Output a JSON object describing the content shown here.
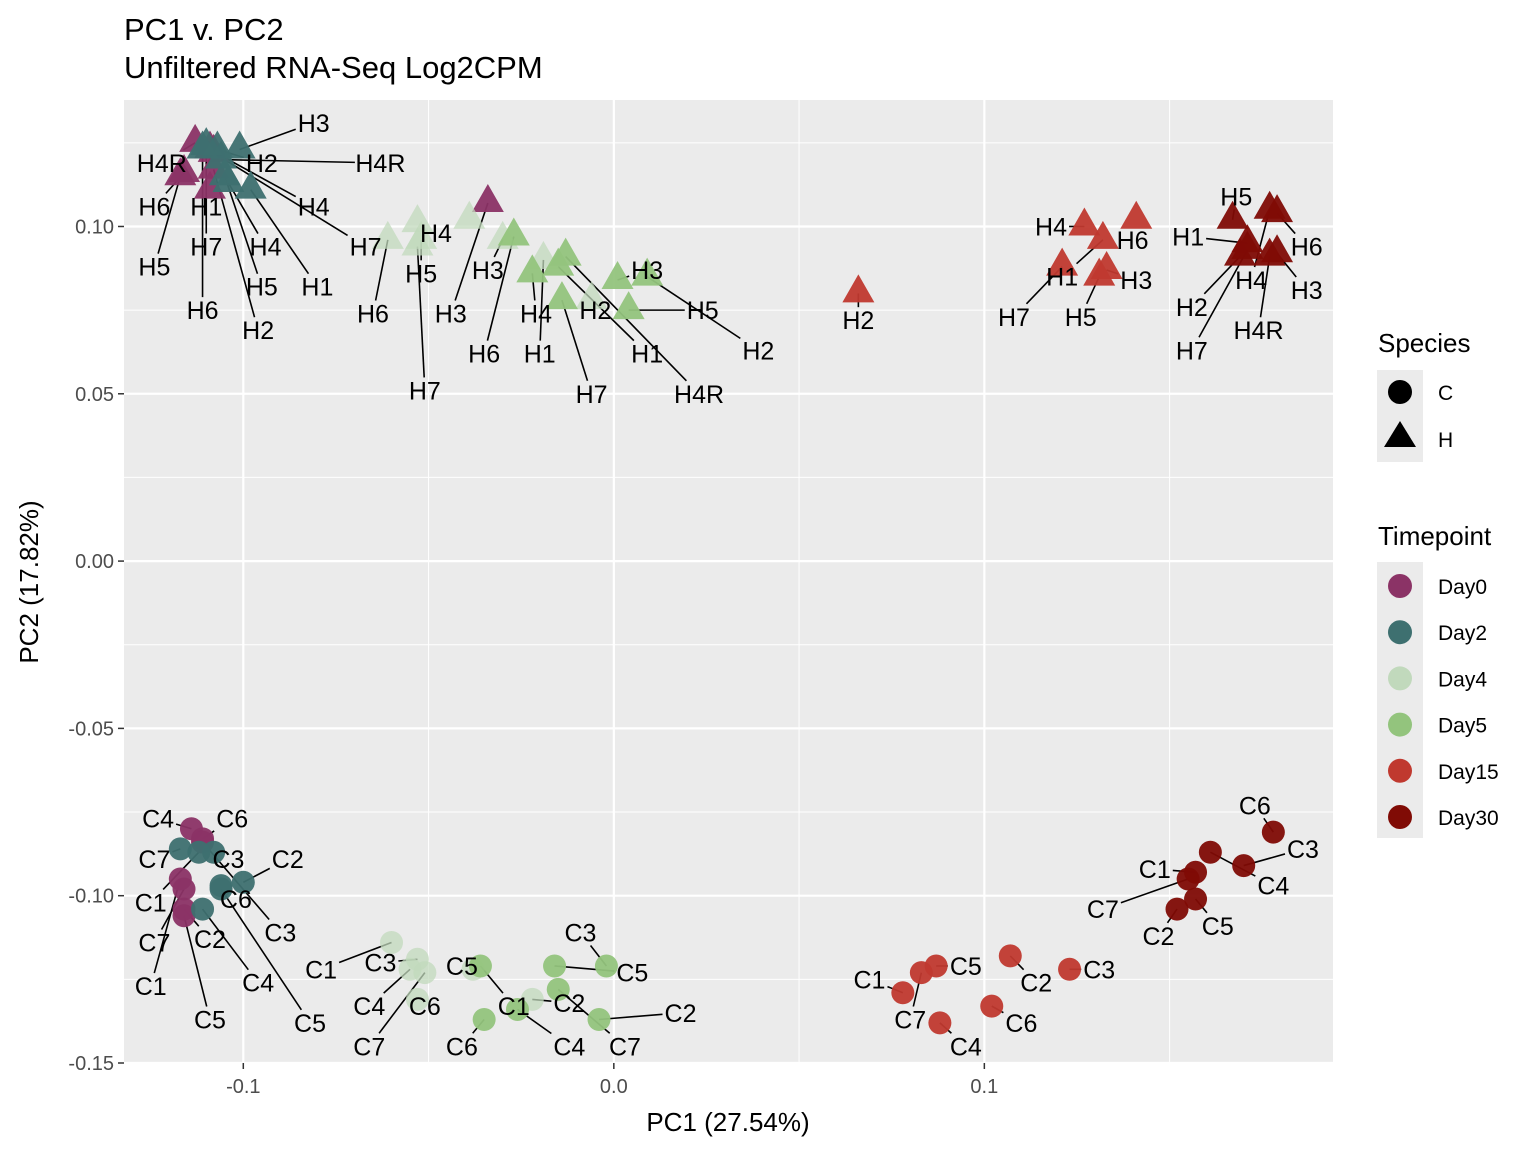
{
  "chart_data": {
    "type": "scatter",
    "title": "PC1 v. PC2",
    "subtitle": "Unfiltered RNA-Seq Log2CPM",
    "xlabel": "PC1 (27.54%)",
    "ylabel": "PC2 (17.82%)",
    "xlim": [
      -0.1322,
      0.1941
    ],
    "ylim": [
      -0.15,
      0.1378
    ],
    "x_ticks": [
      -0.1,
      0.0,
      0.1
    ],
    "x_tick_labels": [
      "-0.1",
      "0.0",
      "0.1"
    ],
    "y_ticks": [
      -0.15,
      -0.1,
      -0.05,
      0.0,
      0.05,
      0.1
    ],
    "y_tick_labels": [
      "-0.15",
      "-0.10",
      "-0.05",
      "0.00",
      "0.05",
      "0.10"
    ],
    "grid": true,
    "background": "#ebebeb",
    "legend_placement": "right",
    "legends": [
      {
        "title": "Species",
        "entries": [
          {
            "label": "C",
            "shape": "circle"
          },
          {
            "label": "H",
            "shape": "triangle"
          }
        ]
      },
      {
        "title": "Timepoint",
        "entries": [
          {
            "label": "Day0",
            "color": "#8b3366"
          },
          {
            "label": "Day2",
            "color": "#3e7070"
          },
          {
            "label": "Day4",
            "color": "#c1d9bc"
          },
          {
            "label": "Day5",
            "color": "#93c47d"
          },
          {
            "label": "Day15",
            "color": "#c0392f"
          },
          {
            "label": "Day30",
            "color": "#800b05"
          }
        ]
      }
    ],
    "points": [
      {
        "label": "H4R",
        "species": "H",
        "timepoint": "Day0",
        "x": -0.113,
        "y": 0.125,
        "label_x": -0.122,
        "label_y": 0.119
      },
      {
        "label": "H6",
        "species": "H",
        "timepoint": "Day0",
        "x": -0.116,
        "y": 0.116,
        "label_x": -0.124,
        "label_y": 0.106
      },
      {
        "label": "H1",
        "species": "H",
        "timepoint": "Day0",
        "x": -0.109,
        "y": 0.111,
        "label_x": -0.11,
        "label_y": 0.106
      },
      {
        "label": "H4",
        "species": "H",
        "timepoint": "Day0",
        "x": -0.109,
        "y": 0.123,
        "label_x": -0.081,
        "label_y": 0.106
      },
      {
        "label": "H7",
        "species": "H",
        "timepoint": "Day0",
        "x": -0.108,
        "y": 0.122,
        "label_x": -0.067,
        "label_y": 0.094
      },
      {
        "label": "H5",
        "species": "H",
        "timepoint": "Day0",
        "x": -0.117,
        "y": 0.115,
        "label_x": -0.124,
        "label_y": 0.088
      },
      {
        "label": "H2",
        "species": "H",
        "timepoint": "Day0",
        "x": -0.108,
        "y": 0.117,
        "label_x": -0.096,
        "label_y": 0.069
      },
      {
        "label": "H3",
        "species": "H",
        "timepoint": "Day0",
        "x": -0.034,
        "y": 0.107,
        "label_x": -0.044,
        "label_y": 0.074
      },
      {
        "label": "H3",
        "species": "H",
        "timepoint": "Day2",
        "x": -0.101,
        "y": 0.123,
        "label_x": -0.081,
        "label_y": 0.131
      },
      {
        "label": "H2",
        "species": "H",
        "timepoint": "Day2",
        "x": -0.107,
        "y": 0.123,
        "label_x": -0.095,
        "label_y": 0.119
      },
      {
        "label": "H4R",
        "species": "H",
        "timepoint": "Day2",
        "x": -0.106,
        "y": 0.12,
        "label_x": -0.063,
        "label_y": 0.119
      },
      {
        "label": "H7",
        "species": "H",
        "timepoint": "Day2",
        "x": -0.11,
        "y": 0.124,
        "label_x": -0.11,
        "label_y": 0.094
      },
      {
        "label": "H4",
        "species": "H",
        "timepoint": "Day2",
        "x": -0.104,
        "y": 0.113,
        "label_x": -0.094,
        "label_y": 0.094
      },
      {
        "label": "H6",
        "species": "H",
        "timepoint": "Day2",
        "x": -0.111,
        "y": 0.123,
        "label_x": -0.111,
        "label_y": 0.075
      },
      {
        "label": "H5",
        "species": "H",
        "timepoint": "Day2",
        "x": -0.105,
        "y": 0.115,
        "label_x": -0.095,
        "label_y": 0.082
      },
      {
        "label": "H1",
        "species": "H",
        "timepoint": "Day2",
        "x": -0.098,
        "y": 0.111,
        "label_x": -0.08,
        "label_y": 0.082
      },
      {
        "label": "H6",
        "species": "H",
        "timepoint": "Day4",
        "x": -0.061,
        "y": 0.096,
        "label_x": -0.065,
        "label_y": 0.074
      },
      {
        "label": "H4",
        "species": "H",
        "timepoint": "Day4",
        "x": -0.053,
        "y": 0.101,
        "label_x": -0.048,
        "label_y": 0.098
      },
      {
        "label": "H5",
        "species": "H",
        "timepoint": "Day4",
        "x": -0.052,
        "y": 0.096,
        "label_x": -0.052,
        "label_y": 0.086
      },
      {
        "label": "H7",
        "species": "H",
        "timepoint": "Day4",
        "x": -0.053,
        "y": 0.094,
        "label_x": -0.051,
        "label_y": 0.051
      },
      {
        "label": "H3",
        "species": "H",
        "timepoint": "Day4",
        "x": -0.03,
        "y": 0.096,
        "label_x": -0.034,
        "label_y": 0.087
      },
      {
        "label": "H1",
        "species": "H",
        "timepoint": "Day4",
        "x": -0.019,
        "y": 0.09,
        "label_x": -0.02,
        "label_y": 0.062
      },
      {
        "label": "H2",
        "species": "H",
        "timepoint": "Day4",
        "x": -0.006,
        "y": 0.078,
        "label_x": -0.005,
        "label_y": 0.075
      },
      {
        "label": null,
        "species": "H",
        "timepoint": "Day4",
        "x": -0.039,
        "y": 0.102
      },
      {
        "label": "H6",
        "species": "H",
        "timepoint": "Day5",
        "x": -0.027,
        "y": 0.097,
        "label_x": -0.035,
        "label_y": 0.062
      },
      {
        "label": "H4",
        "species": "H",
        "timepoint": "Day5",
        "x": -0.022,
        "y": 0.086,
        "label_x": -0.021,
        "label_y": 0.074
      },
      {
        "label": "H1",
        "species": "H",
        "timepoint": "Day5",
        "x": -0.015,
        "y": 0.088,
        "label_x": 0.009,
        "label_y": 0.062
      },
      {
        "label": "H4R",
        "species": "H",
        "timepoint": "Day5",
        "x": -0.013,
        "y": 0.091,
        "label_x": 0.023,
        "label_y": 0.05
      },
      {
        "label": "H7",
        "species": "H",
        "timepoint": "Day5",
        "x": -0.014,
        "y": 0.078,
        "label_x": -0.006,
        "label_y": 0.05
      },
      {
        "label": "H3",
        "species": "H",
        "timepoint": "Day5",
        "x": 0.001,
        "y": 0.084,
        "label_x": 0.009,
        "label_y": 0.087
      },
      {
        "label": "H2",
        "species": "H",
        "timepoint": "Day5",
        "x": 0.009,
        "y": 0.085,
        "label_x": 0.039,
        "label_y": 0.063
      },
      {
        "label": "H5",
        "species": "H",
        "timepoint": "Day5",
        "x": 0.004,
        "y": 0.075,
        "label_x": 0.024,
        "label_y": 0.075
      },
      {
        "label": "H2",
        "species": "H",
        "timepoint": "Day15",
        "x": 0.066,
        "y": 0.08,
        "label_x": 0.066,
        "label_y": 0.072
      },
      {
        "label": "H4",
        "species": "H",
        "timepoint": "Day15",
        "x": 0.127,
        "y": 0.1,
        "label_x": 0.118,
        "label_y": 0.1
      },
      {
        "label": "H1",
        "species": "H",
        "timepoint": "Day15",
        "x": 0.132,
        "y": 0.096,
        "label_x": 0.121,
        "label_y": 0.085
      },
      {
        "label": "H6",
        "species": "H",
        "timepoint": "Day15",
        "x": 0.141,
        "y": 0.102,
        "label_x": 0.14,
        "label_y": 0.096
      },
      {
        "label": "H7",
        "species": "H",
        "timepoint": "Day15",
        "x": 0.121,
        "y": 0.088,
        "label_x": 0.108,
        "label_y": 0.073
      },
      {
        "label": "H3",
        "species": "H",
        "timepoint": "Day15",
        "x": 0.133,
        "y": 0.087,
        "label_x": 0.141,
        "label_y": 0.084
      },
      {
        "label": "H5",
        "species": "H",
        "timepoint": "Day15",
        "x": 0.131,
        "y": 0.085,
        "label_x": 0.126,
        "label_y": 0.073
      },
      {
        "label": "H4",
        "species": "H",
        "timepoint": "Day30",
        "x": 0.177,
        "y": 0.105,
        "label_x": 0.172,
        "label_y": 0.084
      },
      {
        "label": "H5",
        "species": "H",
        "timepoint": "Day30",
        "x": 0.167,
        "y": 0.102,
        "label_x": 0.168,
        "label_y": 0.109
      },
      {
        "label": "H1",
        "species": "H",
        "timepoint": "Day30",
        "x": 0.171,
        "y": 0.095,
        "label_x": 0.155,
        "label_y": 0.097
      },
      {
        "label": "H6",
        "species": "H",
        "timepoint": "Day30",
        "x": 0.179,
        "y": 0.104,
        "label_x": 0.187,
        "label_y": 0.094
      },
      {
        "label": "H3",
        "species": "H",
        "timepoint": "Day30",
        "x": 0.179,
        "y": 0.092,
        "label_x": 0.187,
        "label_y": 0.081
      },
      {
        "label": "H4R",
        "species": "H",
        "timepoint": "Day30",
        "x": 0.177,
        "y": 0.091,
        "label_x": 0.174,
        "label_y": 0.069
      },
      {
        "label": "H2",
        "species": "H",
        "timepoint": "Day30",
        "x": 0.169,
        "y": 0.091,
        "label_x": 0.156,
        "label_y": 0.076
      },
      {
        "label": "H7",
        "species": "H",
        "timepoint": "Day30",
        "x": 0.171,
        "y": 0.093,
        "label_x": 0.156,
        "label_y": 0.063
      },
      {
        "label": "C4",
        "species": "C",
        "timepoint": "Day0",
        "x": -0.114,
        "y": -0.08,
        "label_x": -0.123,
        "label_y": -0.077
      },
      {
        "label": "C6",
        "species": "C",
        "timepoint": "Day0",
        "x": -0.111,
        "y": -0.083,
        "label_x": -0.103,
        "label_y": -0.077
      },
      {
        "label": "C3",
        "species": "C",
        "timepoint": "Day0",
        "x": -0.111,
        "y": -0.084,
        "label_x": -0.09,
        "label_y": -0.111
      },
      {
        "label": "C1",
        "species": "C",
        "timepoint": "Day0",
        "x": -0.117,
        "y": -0.095,
        "label_x": -0.125,
        "label_y": -0.127
      },
      {
        "label": "C7",
        "species": "C",
        "timepoint": "Day0",
        "x": -0.116,
        "y": -0.098,
        "label_x": -0.124,
        "label_y": -0.114
      },
      {
        "label": "C2",
        "species": "C",
        "timepoint": "Day0",
        "x": -0.116,
        "y": -0.104,
        "label_x": -0.109,
        "label_y": -0.113
      },
      {
        "label": "C5",
        "species": "C",
        "timepoint": "Day0",
        "x": -0.116,
        "y": -0.106,
        "label_x": -0.109,
        "label_y": -0.137
      },
      {
        "label": "C7",
        "species": "C",
        "timepoint": "Day2",
        "x": -0.117,
        "y": -0.086,
        "label_x": -0.124,
        "label_y": -0.089
      },
      {
        "label": "C3",
        "species": "C",
        "timepoint": "Day2",
        "x": -0.108,
        "y": -0.087,
        "label_x": -0.104,
        "label_y": -0.089
      },
      {
        "label": "C6",
        "species": "C",
        "timepoint": "Day2",
        "x": -0.106,
        "y": -0.097,
        "label_x": -0.102,
        "label_y": -0.101
      },
      {
        "label": "C5",
        "species": "C",
        "timepoint": "Day2",
        "x": -0.106,
        "y": -0.098,
        "label_x": -0.082,
        "label_y": -0.138
      },
      {
        "label": "C2",
        "species": "C",
        "timepoint": "Day2",
        "x": -0.1,
        "y": -0.096,
        "label_x": -0.088,
        "label_y": -0.089
      },
      {
        "label": "C4",
        "species": "C",
        "timepoint": "Day2",
        "x": -0.111,
        "y": -0.104,
        "label_x": -0.096,
        "label_y": -0.126
      },
      {
        "label": "C1",
        "species": "C",
        "timepoint": "Day2",
        "x": -0.112,
        "y": -0.087,
        "label_x": -0.125,
        "label_y": -0.102
      },
      {
        "label": "C1",
        "species": "C",
        "timepoint": "Day4",
        "x": -0.06,
        "y": -0.114,
        "label_x": -0.079,
        "label_y": -0.122
      },
      {
        "label": "C3",
        "species": "C",
        "timepoint": "Day4",
        "x": -0.053,
        "y": -0.119,
        "label_x": -0.063,
        "label_y": -0.12
      },
      {
        "label": "C4",
        "species": "C",
        "timepoint": "Day4",
        "x": -0.055,
        "y": -0.122,
        "label_x": -0.066,
        "label_y": -0.133
      },
      {
        "label": "C7",
        "species": "C",
        "timepoint": "Day4",
        "x": -0.051,
        "y": -0.123,
        "label_x": -0.066,
        "label_y": -0.145
      },
      {
        "label": "C6",
        "species": "C",
        "timepoint": "Day4",
        "x": -0.053,
        "y": -0.131,
        "label_x": -0.051,
        "label_y": -0.133
      },
      {
        "label": "C5",
        "species": "C",
        "timepoint": "Day4",
        "x": -0.038,
        "y": -0.122,
        "label_x": -0.041,
        "label_y": -0.121
      },
      {
        "label": "C2",
        "species": "C",
        "timepoint": "Day4",
        "x": -0.022,
        "y": -0.131,
        "label_x": -0.012,
        "label_y": -0.132
      },
      {
        "label": "C6",
        "species": "C",
        "timepoint": "Day5",
        "x": -0.035,
        "y": -0.137,
        "label_x": -0.041,
        "label_y": -0.145
      },
      {
        "label": "C1",
        "species": "C",
        "timepoint": "Day5",
        "x": -0.036,
        "y": -0.121,
        "label_x": -0.027,
        "label_y": -0.133
      },
      {
        "label": "C4",
        "species": "C",
        "timepoint": "Day5",
        "x": -0.026,
        "y": -0.134,
        "label_x": -0.012,
        "label_y": -0.145
      },
      {
        "label": "C5",
        "species": "C",
        "timepoint": "Day5",
        "x": -0.016,
        "y": -0.121,
        "label_x": 0.005,
        "label_y": -0.123
      },
      {
        "label": "C3",
        "species": "C",
        "timepoint": "Day5",
        "x": -0.002,
        "y": -0.121,
        "label_x": -0.009,
        "label_y": -0.111
      },
      {
        "label": "C7",
        "species": "C",
        "timepoint": "Day5",
        "x": -0.015,
        "y": -0.128,
        "label_x": 0.003,
        "label_y": -0.145
      },
      {
        "label": "C2",
        "species": "C",
        "timepoint": "Day5",
        "x": -0.004,
        "y": -0.137,
        "label_x": 0.018,
        "label_y": -0.135
      },
      {
        "label": "C1",
        "species": "C",
        "timepoint": "Day15",
        "x": 0.078,
        "y": -0.129,
        "label_x": 0.069,
        "label_y": -0.125
      },
      {
        "label": "C7",
        "species": "C",
        "timepoint": "Day15",
        "x": 0.083,
        "y": -0.123,
        "label_x": 0.08,
        "label_y": -0.137
      },
      {
        "label": "C5",
        "species": "C",
        "timepoint": "Day15",
        "x": 0.087,
        "y": -0.121,
        "label_x": 0.095,
        "label_y": -0.121
      },
      {
        "label": "C4",
        "species": "C",
        "timepoint": "Day15",
        "x": 0.088,
        "y": -0.138,
        "label_x": 0.095,
        "label_y": -0.145
      },
      {
        "label": "C6",
        "species": "C",
        "timepoint": "Day15",
        "x": 0.102,
        "y": -0.133,
        "label_x": 0.11,
        "label_y": -0.138
      },
      {
        "label": "C2",
        "species": "C",
        "timepoint": "Day15",
        "x": 0.107,
        "y": -0.118,
        "label_x": 0.114,
        "label_y": -0.126
      },
      {
        "label": "C3",
        "species": "C",
        "timepoint": "Day15",
        "x": 0.123,
        "y": -0.122,
        "label_x": 0.131,
        "label_y": -0.122
      },
      {
        "label": "C6",
        "species": "C",
        "timepoint": "Day30",
        "x": 0.178,
        "y": -0.081,
        "label_x": 0.173,
        "label_y": -0.073
      },
      {
        "label": "C3",
        "species": "C",
        "timepoint": "Day30",
        "x": 0.17,
        "y": -0.091,
        "label_x": 0.186,
        "label_y": -0.086
      },
      {
        "label": "C4",
        "species": "C",
        "timepoint": "Day30",
        "x": 0.161,
        "y": -0.087,
        "label_x": 0.178,
        "label_y": -0.097
      },
      {
        "label": "C1",
        "species": "C",
        "timepoint": "Day30",
        "x": 0.157,
        "y": -0.093,
        "label_x": 0.146,
        "label_y": -0.092
      },
      {
        "label": "C7",
        "species": "C",
        "timepoint": "Day30",
        "x": 0.155,
        "y": -0.095,
        "label_x": 0.132,
        "label_y": -0.104
      },
      {
        "label": "C5",
        "species": "C",
        "timepoint": "Day30",
        "x": 0.157,
        "y": -0.101,
        "label_x": 0.163,
        "label_y": -0.109
      },
      {
        "label": "C2",
        "species": "C",
        "timepoint": "Day30",
        "x": 0.152,
        "y": -0.104,
        "label_x": 0.147,
        "label_y": -0.112
      }
    ]
  }
}
